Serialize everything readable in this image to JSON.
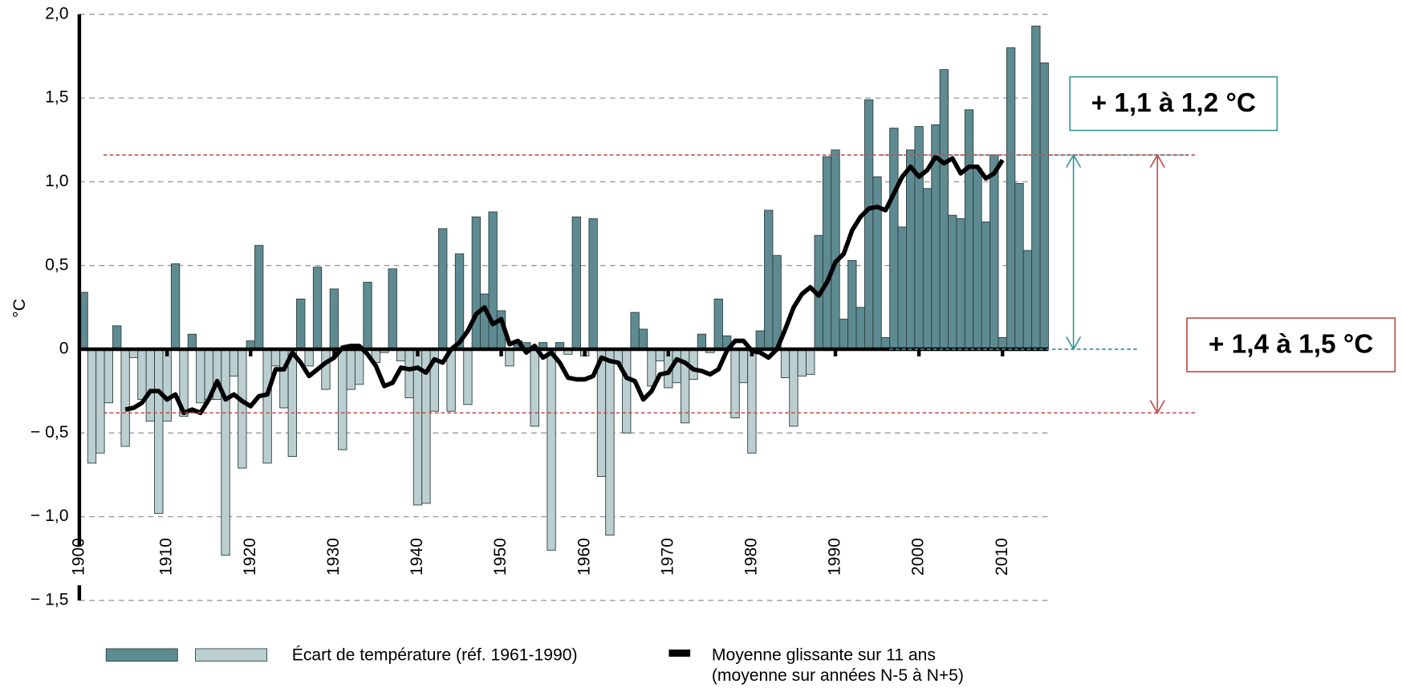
{
  "chart_data": {
    "type": "bar",
    "y_label": "°C",
    "xlim": [
      1900,
      2016
    ],
    "ylim": [
      -1.5,
      2.0
    ],
    "xticks": [
      1900,
      1910,
      1920,
      1930,
      1940,
      1950,
      1960,
      1970,
      1980,
      1990,
      2000,
      2010
    ],
    "yticks": [
      {
        "value": -1.5,
        "label": "− 1,5"
      },
      {
        "value": -1.0,
        "label": "− 1,0"
      },
      {
        "value": -0.5,
        "label": "− 0,5"
      },
      0,
      {
        "value": 0.5,
        "label": "0,5"
      },
      {
        "value": 1.0,
        "label": "1,0"
      },
      {
        "value": 1.5,
        "label": "1,5"
      },
      {
        "value": 2.0,
        "label": "2,0"
      }
    ],
    "grid": true,
    "series": [
      {
        "name": "Écart de température (réf. 1961-1990)",
        "type": "bar",
        "colors": [
          "#5e8b91",
          "#bccfd0"
        ],
        "x": [
          1900,
          1901,
          1902,
          1903,
          1904,
          1905,
          1906,
          1907,
          1908,
          1909,
          1910,
          1911,
          1912,
          1913,
          1914,
          1915,
          1916,
          1917,
          1918,
          1919,
          1920,
          1921,
          1922,
          1923,
          1924,
          1925,
          1926,
          1927,
          1928,
          1929,
          1930,
          1931,
          1932,
          1933,
          1934,
          1935,
          1936,
          1937,
          1938,
          1939,
          1940,
          1941,
          1942,
          1943,
          1944,
          1945,
          1946,
          1947,
          1948,
          1949,
          1950,
          1951,
          1952,
          1953,
          1954,
          1955,
          1956,
          1957,
          1958,
          1959,
          1960,
          1961,
          1962,
          1963,
          1964,
          1965,
          1966,
          1967,
          1968,
          1969,
          1970,
          1971,
          1972,
          1973,
          1974,
          1975,
          1976,
          1977,
          1978,
          1979,
          1980,
          1981,
          1982,
          1983,
          1984,
          1985,
          1986,
          1987,
          1988,
          1989,
          1990,
          1991,
          1992,
          1993,
          1994,
          1995,
          1996,
          1997,
          1998,
          1999,
          2000,
          2001,
          2002,
          2003,
          2004,
          2005,
          2006,
          2007,
          2008,
          2009,
          2010,
          2011,
          2012,
          2013,
          2014,
          2015
        ],
        "values": [
          0.34,
          -0.68,
          -0.62,
          -0.32,
          0.14,
          -0.58,
          -0.05,
          -0.3,
          -0.43,
          -0.98,
          -0.43,
          0.51,
          -0.4,
          0.09,
          -0.32,
          -0.3,
          -0.3,
          -1.23,
          -0.16,
          -0.71,
          0.05,
          0.62,
          -0.68,
          -0.1,
          -0.35,
          -0.64,
          0.3,
          -0.1,
          0.49,
          -0.24,
          0.36,
          -0.6,
          -0.24,
          -0.21,
          0.4,
          -0.08,
          -0.02,
          0.48,
          -0.07,
          -0.29,
          -0.93,
          -0.92,
          -0.37,
          0.72,
          -0.37,
          0.57,
          -0.33,
          0.79,
          0.33,
          0.82,
          0.23,
          -0.1,
          0.05,
          0.04,
          -0.46,
          0.04,
          -1.2,
          0.04,
          -0.03,
          0.79,
          -0.04,
          0.78,
          -0.76,
          -1.11,
          -0.08,
          -0.5,
          0.22,
          0.12,
          -0.22,
          -0.07,
          -0.23,
          -0.2,
          -0.44,
          -0.18,
          0.09,
          -0.02,
          0.3,
          0.08,
          -0.41,
          -0.2,
          -0.62,
          0.11,
          0.83,
          0.56,
          -0.17,
          -0.46,
          -0.16,
          -0.15,
          0.68,
          1.15,
          1.19,
          0.18,
          0.53,
          0.25,
          1.49,
          1.03,
          0.07,
          1.32,
          0.73,
          1.19,
          1.33,
          0.96,
          1.34,
          1.67,
          0.8,
          0.78,
          1.43,
          1.08,
          0.76,
          1.16,
          0.07,
          1.8,
          0.99,
          0.59,
          1.93,
          1.71
        ]
      },
      {
        "name": "Moyenne glissante sur 11 ans",
        "name_line2": "(moyenne sur années N-5 à N+5)",
        "type": "line",
        "color": "#000000",
        "x": [
          1905,
          1906,
          1907,
          1908,
          1909,
          1910,
          1911,
          1912,
          1913,
          1914,
          1915,
          1916,
          1917,
          1918,
          1919,
          1920,
          1921,
          1922,
          1923,
          1924,
          1925,
          1926,
          1927,
          1928,
          1929,
          1930,
          1931,
          1932,
          1933,
          1934,
          1935,
          1936,
          1937,
          1938,
          1939,
          1940,
          1941,
          1942,
          1943,
          1944,
          1945,
          1946,
          1947,
          1948,
          1949,
          1950,
          1951,
          1952,
          1953,
          1954,
          1955,
          1956,
          1957,
          1958,
          1959,
          1960,
          1961,
          1962,
          1963,
          1964,
          1965,
          1966,
          1967,
          1968,
          1969,
          1970,
          1971,
          1972,
          1973,
          1974,
          1975,
          1976,
          1977,
          1978,
          1979,
          1980,
          1981,
          1982,
          1983,
          1984,
          1985,
          1986,
          1987,
          1988,
          1989,
          1990,
          1991,
          1992,
          1993,
          1994,
          1995,
          1996,
          1997,
          1998,
          1999,
          2000,
          2001,
          2002,
          2003,
          2004,
          2005,
          2006,
          2007,
          2008,
          2009,
          2010
        ],
        "values": [
          -0.36,
          -0.35,
          -0.32,
          -0.25,
          -0.25,
          -0.3,
          -0.27,
          -0.38,
          -0.36,
          -0.38,
          -0.3,
          -0.19,
          -0.3,
          -0.27,
          -0.31,
          -0.34,
          -0.28,
          -0.27,
          -0.12,
          -0.12,
          -0.02,
          -0.08,
          -0.16,
          -0.12,
          -0.08,
          -0.05,
          0.01,
          0.02,
          0.02,
          -0.03,
          -0.1,
          -0.22,
          -0.2,
          -0.11,
          -0.12,
          -0.11,
          -0.14,
          -0.06,
          -0.08,
          0.0,
          0.04,
          0.11,
          0.21,
          0.25,
          0.15,
          0.18,
          0.03,
          0.05,
          -0.02,
          0.02,
          -0.05,
          -0.02,
          -0.08,
          -0.17,
          -0.18,
          -0.18,
          -0.16,
          -0.05,
          -0.07,
          -0.08,
          -0.17,
          -0.19,
          -0.3,
          -0.25,
          -0.15,
          -0.14,
          -0.06,
          -0.08,
          -0.12,
          -0.13,
          -0.15,
          -0.12,
          -0.01,
          0.05,
          0.05,
          -0.01,
          -0.02,
          -0.05,
          0.0,
          0.12,
          0.25,
          0.33,
          0.37,
          0.32,
          0.4,
          0.52,
          0.57,
          0.71,
          0.79,
          0.84,
          0.85,
          0.83,
          0.93,
          1.03,
          1.09,
          1.03,
          1.07,
          1.15,
          1.11,
          1.14,
          1.05,
          1.09,
          1.09,
          1.02,
          1.05,
          1.13
        ]
      }
    ],
    "annotations": [
      {
        "text": "+ 1,1 à 1,2 °C",
        "from": 0,
        "to": 1.16,
        "color": "#3a9797",
        "text_color": "#1e8a1e"
      },
      {
        "text": "+ 1,4 à 1,5 °C",
        "from": -0.38,
        "to": 1.16,
        "color": "#c0504d",
        "text_color": "#c0504d"
      }
    ]
  }
}
